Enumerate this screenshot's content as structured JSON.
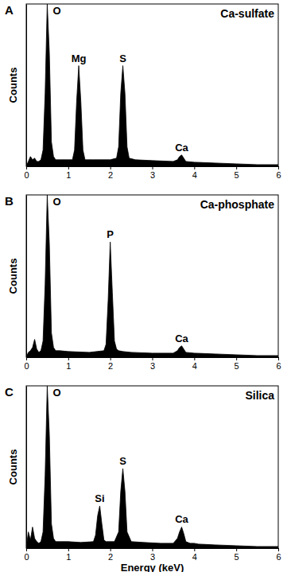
{
  "chart_data": [
    {
      "type": "area",
      "panel_label": "A",
      "title": "Ca-sulfate",
      "y_label": "Counts",
      "color": "#000000",
      "tick_labels": "x",
      "xlim": [
        0,
        6
      ],
      "xticks": [
        0,
        1,
        2,
        3,
        4,
        5,
        6
      ],
      "ylim": [
        0,
        100
      ],
      "yticks": [],
      "x": [
        0,
        0.05,
        0.1,
        0.15,
        0.2,
        0.25,
        0.3,
        0.35,
        0.4,
        0.45,
        0.5,
        0.55,
        0.6,
        0.65,
        0.7,
        0.8,
        1.0,
        1.1,
        1.15,
        1.2,
        1.25,
        1.3,
        1.35,
        1.4,
        1.6,
        2.0,
        2.15,
        2.2,
        2.25,
        2.3,
        2.35,
        2.4,
        2.45,
        2.6,
        3.0,
        3.5,
        3.6,
        3.65,
        3.7,
        3.75,
        3.8,
        4.0,
        4.5,
        5.0,
        5.5,
        6.0
      ],
      "values": [
        0,
        3,
        6,
        4,
        5,
        3,
        3,
        4,
        10,
        45,
        100,
        70,
        15,
        6,
        4,
        4,
        4,
        4,
        10,
        40,
        62,
        40,
        10,
        4,
        4,
        4,
        5,
        12,
        45,
        62,
        45,
        12,
        5,
        4,
        3.5,
        3,
        4,
        6,
        7,
        5,
        3,
        2.5,
        2,
        1.5,
        1,
        1
      ],
      "annotations": [
        {
          "text": "O",
          "x": 0.5,
          "y": 100
        },
        {
          "text": "Mg",
          "x": 1.25,
          "y": 62
        },
        {
          "text": "S",
          "x": 2.3,
          "y": 62
        },
        {
          "text": "Ca",
          "x": 3.7,
          "y": 7
        }
      ]
    },
    {
      "type": "area",
      "panel_label": "B",
      "title": "Ca-phosphate",
      "y_label": "Counts",
      "color": "#000000",
      "tick_labels": "x",
      "xlim": [
        0,
        6
      ],
      "xticks": [
        0,
        1,
        2,
        3,
        4,
        5,
        6
      ],
      "ylim": [
        0,
        100
      ],
      "yticks": [],
      "x": [
        0,
        0.05,
        0.1,
        0.15,
        0.2,
        0.25,
        0.3,
        0.35,
        0.4,
        0.45,
        0.5,
        0.55,
        0.6,
        0.65,
        0.7,
        0.8,
        1.0,
        1.5,
        1.85,
        1.9,
        1.95,
        2.0,
        2.05,
        2.1,
        2.15,
        2.2,
        2.3,
        2.5,
        3.0,
        3.5,
        3.6,
        3.65,
        3.7,
        3.75,
        3.8,
        4.0,
        4.5,
        5.0,
        5.5,
        6.0
      ],
      "values": [
        0,
        3,
        4,
        6,
        11,
        5,
        3,
        4,
        10,
        45,
        100,
        70,
        15,
        6,
        4,
        4,
        3.5,
        3,
        4,
        8,
        35,
        71,
        40,
        10,
        5,
        4,
        3.5,
        3,
        2.5,
        2.5,
        4,
        6,
        7,
        5,
        3,
        2.5,
        2,
        1.5,
        1,
        1
      ],
      "annotations": [
        {
          "text": "O",
          "x": 0.5,
          "y": 100
        },
        {
          "text": "P",
          "x": 2.0,
          "y": 71
        },
        {
          "text": "Ca",
          "x": 3.7,
          "y": 7
        }
      ]
    },
    {
      "type": "area",
      "panel_label": "C",
      "title": "Silica",
      "y_label": "Counts",
      "x_label": "Energy (keV)",
      "color": "#000000",
      "tick_labels": "x",
      "xlim": [
        0,
        6
      ],
      "xticks": [
        0,
        1,
        2,
        3,
        4,
        5,
        6
      ],
      "ylim": [
        0,
        100
      ],
      "yticks": [],
      "x": [
        0,
        0.05,
        0.1,
        0.15,
        0.2,
        0.25,
        0.3,
        0.35,
        0.4,
        0.45,
        0.5,
        0.55,
        0.6,
        0.65,
        0.7,
        0.8,
        1.0,
        1.3,
        1.6,
        1.65,
        1.7,
        1.75,
        1.8,
        1.85,
        1.9,
        2.1,
        2.2,
        2.25,
        2.3,
        2.35,
        2.4,
        2.5,
        2.8,
        3.2,
        3.5,
        3.6,
        3.65,
        3.7,
        3.75,
        3.8,
        3.9,
        4.0,
        4.1,
        4.5,
        5.0,
        5.5,
        6.0
      ],
      "values": [
        0,
        10,
        5,
        13,
        6,
        4,
        3,
        4,
        10,
        45,
        100,
        70,
        15,
        6,
        4,
        4,
        4,
        3.5,
        4,
        8,
        20,
        26,
        15,
        5,
        4,
        4,
        10,
        35,
        49,
        35,
        10,
        4,
        3.5,
        3,
        3,
        6,
        10,
        13,
        9,
        4,
        3,
        3,
        2.5,
        2,
        1.5,
        1,
        1
      ],
      "annotations": [
        {
          "text": "O",
          "x": 0.5,
          "y": 100
        },
        {
          "text": "Si",
          "x": 1.75,
          "y": 26
        },
        {
          "text": "S",
          "x": 2.3,
          "y": 49
        },
        {
          "text": "Ca",
          "x": 3.7,
          "y": 13
        }
      ]
    }
  ]
}
